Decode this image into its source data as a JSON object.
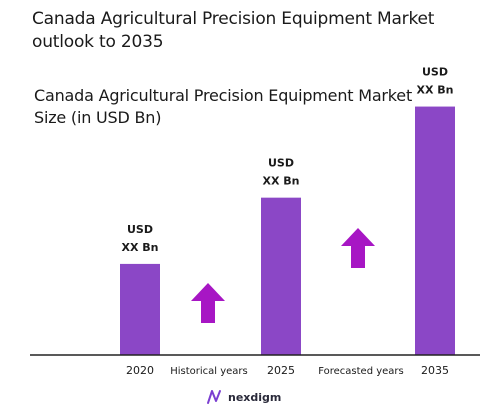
{
  "title": "Canada Agricultural Precision Equipment Market outlook to 2035",
  "subtitle": "Canada Agricultural Precision Equipment Market Size (in USD Bn)",
  "brand": "nexdigm",
  "colors": {
    "bar": "#8b47c6",
    "arrow": "#a716c4",
    "axis": "#222222"
  },
  "chart_data": {
    "type": "bar",
    "title": "Canada Agricultural Precision Equipment Market outlook to 2035",
    "ylabel": "Canada Agricultural Precision Equipment Market Size (in USD Bn)",
    "categories": [
      "2020",
      "2025",
      "2035"
    ],
    "values": [
      22,
      38,
      60
    ],
    "ylim": [
      0,
      64
    ],
    "data_labels": [
      [
        "USD",
        "XX Bn"
      ],
      [
        "USD",
        "XX Bn"
      ],
      [
        "USD",
        "XX Bn"
      ]
    ],
    "period_labels": [
      "Historical years",
      "Forecasted years"
    ],
    "grid": false,
    "legend": "none"
  }
}
